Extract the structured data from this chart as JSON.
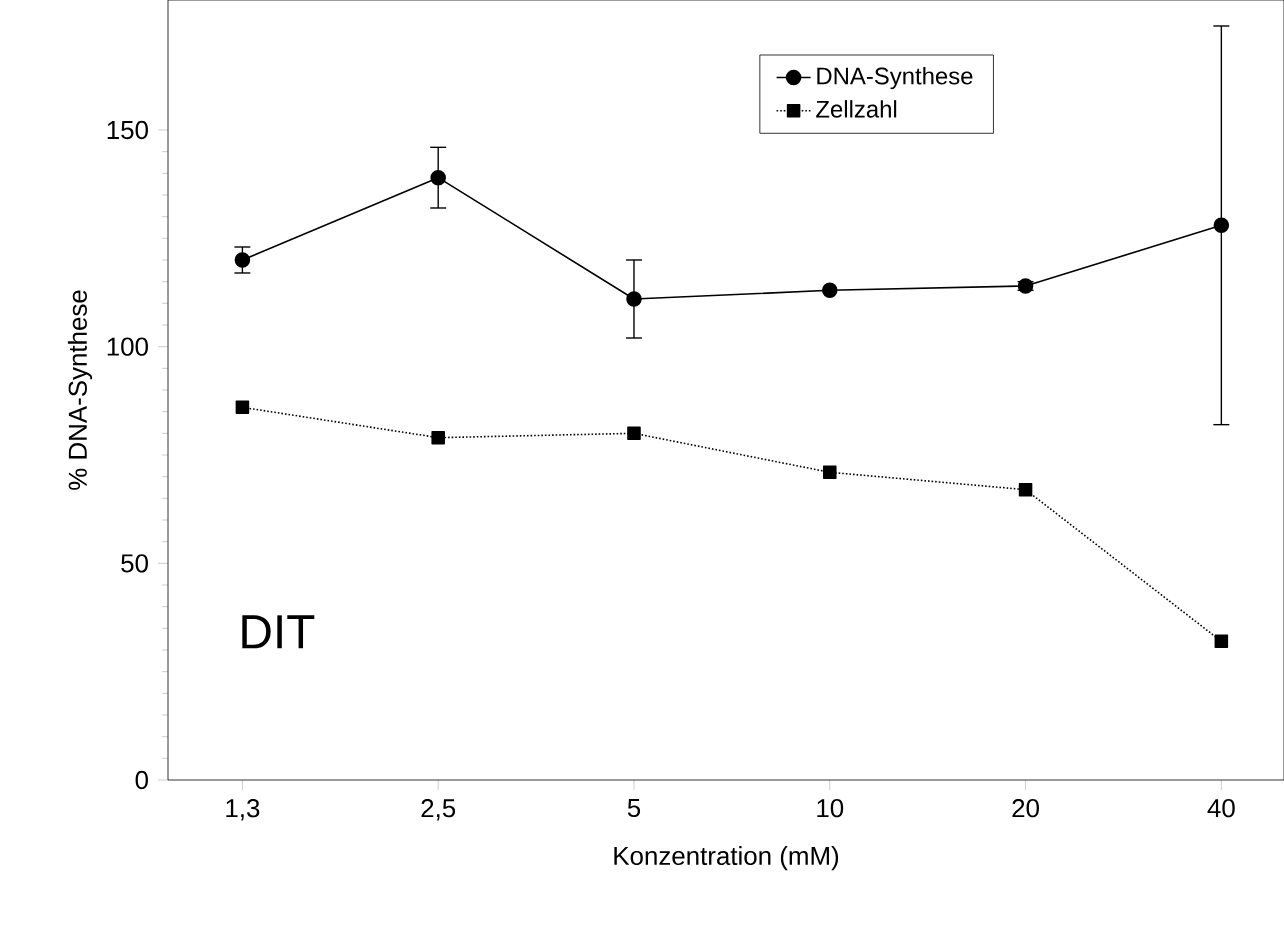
{
  "chart_data": {
    "type": "line",
    "xlabel": "Konzentration (mM)",
    "ylabel": "% DNA-Synthese",
    "categories": [
      "1,3",
      "2,5",
      "5",
      "10",
      "20",
      "40"
    ],
    "ylim": [
      0,
      180
    ],
    "yticks": [
      0,
      50,
      100,
      150
    ],
    "grid": false,
    "legend": "top right",
    "annotations": [
      "DIT"
    ],
    "series": [
      {
        "name": "DNA-Synthese",
        "color": "#000000",
        "marker": "circle",
        "line_style": "solid",
        "values": [
          120,
          139,
          111,
          113,
          114,
          128
        ],
        "errors": [
          3,
          7,
          9,
          null,
          1,
          46
        ]
      },
      {
        "name": "Zellzahl",
        "color": "#000000",
        "marker": "square",
        "line_style": "dotted",
        "values": [
          86,
          79,
          80,
          71,
          67,
          32
        ]
      }
    ]
  }
}
